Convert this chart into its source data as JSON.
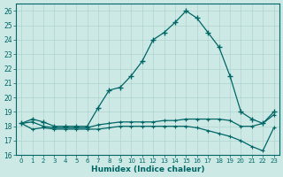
{
  "xlabel": "Humidex (Indice chaleur)",
  "xlim": [
    -0.5,
    23.5
  ],
  "ylim": [
    16,
    26.5
  ],
  "yticks": [
    16,
    17,
    18,
    19,
    20,
    21,
    22,
    23,
    24,
    25,
    26
  ],
  "xticks": [
    0,
    1,
    2,
    3,
    4,
    5,
    6,
    7,
    8,
    9,
    10,
    11,
    12,
    13,
    14,
    15,
    16,
    17,
    18,
    19,
    20,
    21,
    22,
    23
  ],
  "bg_color": "#cce9e5",
  "grid_color": "#aed4cf",
  "line_color": "#006666",
  "hours": [
    0,
    1,
    2,
    3,
    4,
    5,
    6,
    7,
    8,
    9,
    10,
    11,
    12,
    13,
    14,
    15,
    16,
    17,
    18,
    19,
    20,
    21,
    22,
    23
  ],
  "line_max": [
    18.2,
    18.5,
    18.3,
    18.0,
    18.0,
    18.0,
    18.0,
    19.3,
    20.5,
    20.7,
    21.5,
    22.5,
    24.0,
    24.5,
    25.2,
    26.0,
    25.5,
    24.5,
    23.5,
    21.5,
    19.0,
    18.5,
    18.2,
    19.0
  ],
  "line_mean": [
    18.2,
    18.3,
    18.0,
    17.9,
    17.9,
    17.9,
    17.9,
    18.1,
    18.2,
    18.3,
    18.3,
    18.3,
    18.3,
    18.4,
    18.4,
    18.5,
    18.5,
    18.5,
    18.5,
    18.4,
    18.0,
    18.0,
    18.2,
    18.8
  ],
  "line_min": [
    18.2,
    17.8,
    17.9,
    17.8,
    17.8,
    17.8,
    17.8,
    17.8,
    17.9,
    18.0,
    18.0,
    18.0,
    18.0,
    18.0,
    18.0,
    18.0,
    17.9,
    17.7,
    17.5,
    17.3,
    17.0,
    16.6,
    16.3,
    17.9
  ]
}
